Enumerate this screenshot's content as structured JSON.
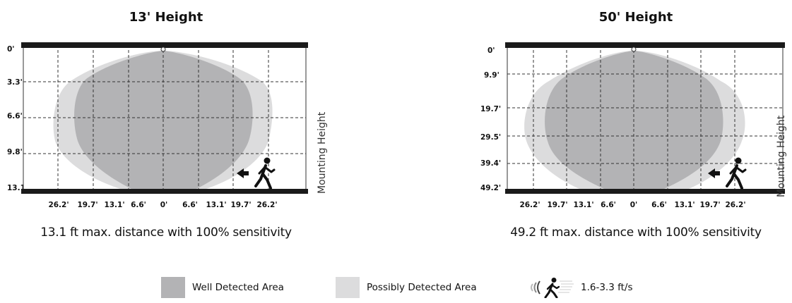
{
  "colors": {
    "well": "#b3b3b5",
    "possible": "#dcdcdd",
    "frame": "#1a1a1a"
  },
  "panels": [
    {
      "title": "13' Height",
      "caption": "13.1 ft max. distance with 100% sensitivity",
      "side_label": "Mounting Height",
      "y_labels": [
        "0'",
        "3.3'",
        "6.6'",
        "9.8'",
        "13.1'"
      ],
      "x_labels": [
        "26.2'",
        "19.7'",
        "13.1'",
        "6.6'",
        "0'",
        "6.6'",
        "13.1'",
        "19.7'",
        "26.2'"
      ]
    },
    {
      "title": "50' Height",
      "caption": "49.2 ft max. distance with 100% sensitivity",
      "side_label": "Mounting Height",
      "y_labels": [
        "0'",
        "9.9'",
        "19.7'",
        "29.5'",
        "39.4'",
        "49.2'"
      ],
      "x_labels": [
        "26.2'",
        "19.7'",
        "13.1'",
        "6.6'",
        "0'",
        "6.6'",
        "13.1'",
        "19.7'",
        "26.2'"
      ]
    }
  ],
  "legend": {
    "well": "Well Detected Area",
    "possible": "Possibly Detected Area",
    "speed": "1.6-3.3 ft/s",
    "speed_icon": "walking-person-motion-icon"
  }
}
